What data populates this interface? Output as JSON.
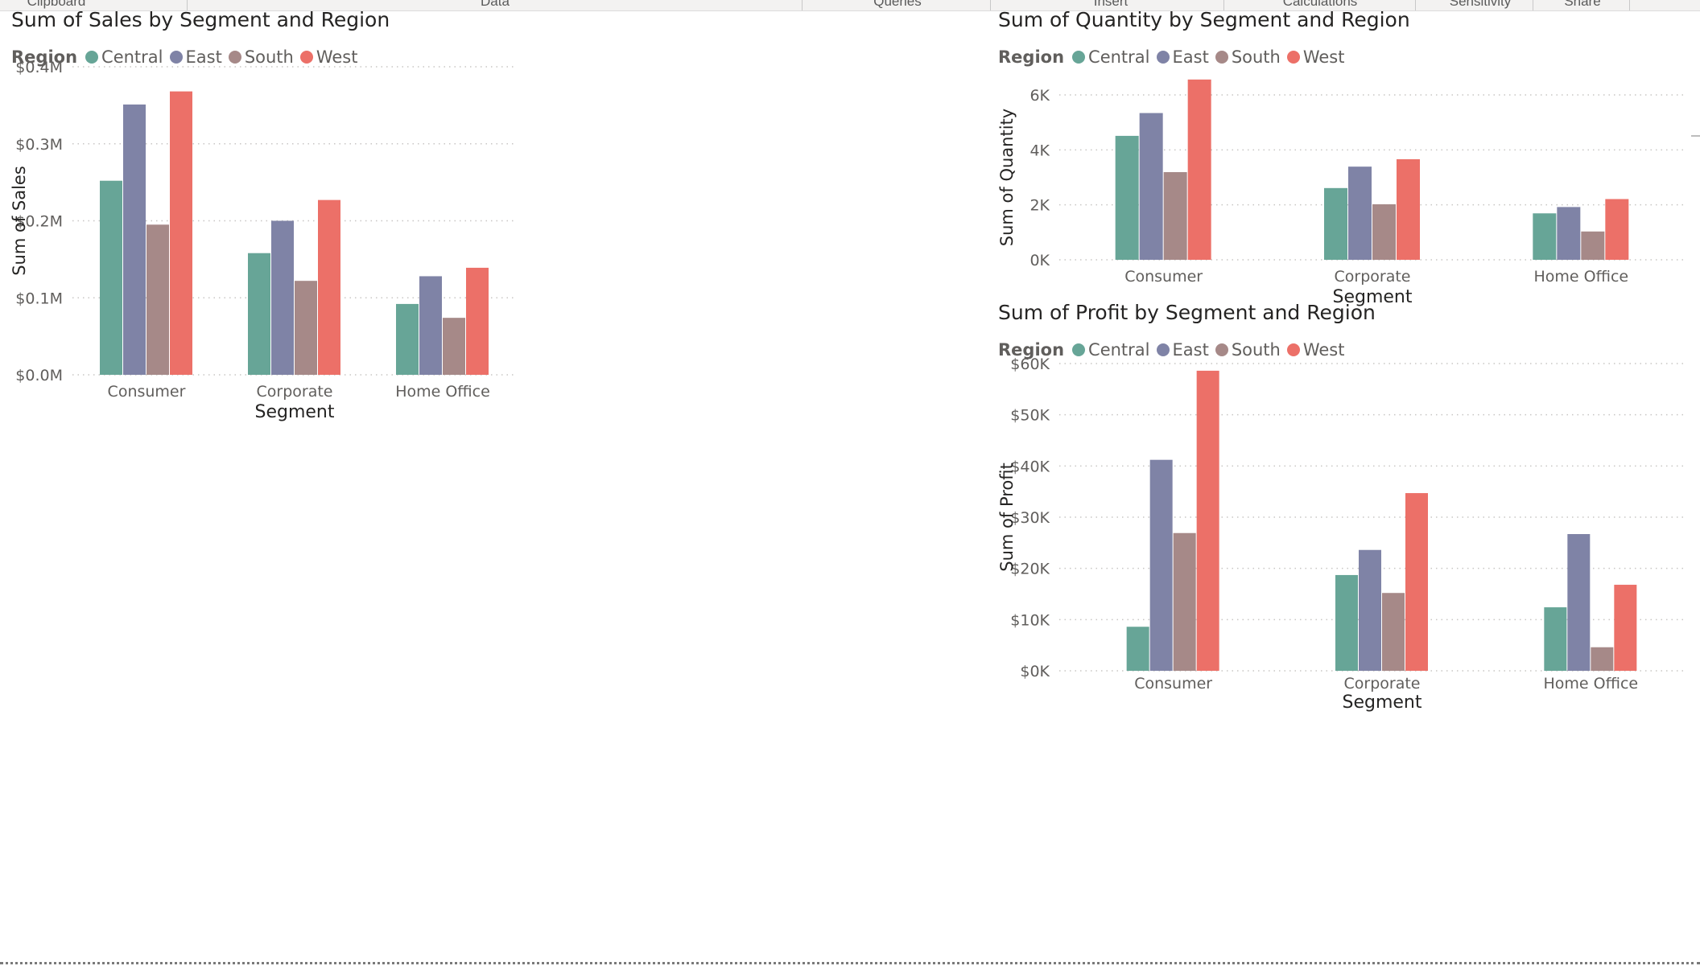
{
  "ribbon": {
    "groups": [
      "Clipboard",
      "Data",
      "Queries",
      "Insert",
      "Calculations",
      "Sensitivity",
      "Share"
    ]
  },
  "colors": {
    "Central": "#67a597",
    "East": "#7f83a6",
    "South": "#a68988",
    "West": "#ec7068",
    "gridline": "#c8c6c4",
    "axis_text": "#605e5c",
    "title_text": "#252423"
  },
  "legend": {
    "title": "Region",
    "items": [
      {
        "label": "Central",
        "color": "#67a597"
      },
      {
        "label": "East",
        "color": "#7f83a6"
      },
      {
        "label": "South",
        "color": "#a68988"
      },
      {
        "label": "West",
        "color": "#ec7068"
      }
    ]
  },
  "chart_data": [
    {
      "type": "bar",
      "title": "Sum of Sales by Segment and Region",
      "xlabel": "Segment",
      "ylabel": "Sum of Sales",
      "categories": [
        "Consumer",
        "Corporate",
        "Home Office"
      ],
      "ylim": [
        0,
        400000
      ],
      "yticks": [
        0,
        100000,
        200000,
        300000,
        400000
      ],
      "ytick_labels": [
        "$0.0M",
        "$0.1M",
        "$0.2M",
        "$0.3M",
        "$0.4M"
      ],
      "grid": true,
      "legend_placement": "top-left",
      "series": [
        {
          "name": "Central",
          "values": [
            252000,
            158000,
            92000
          ]
        },
        {
          "name": "East",
          "values": [
            351000,
            200000,
            128000
          ]
        },
        {
          "name": "South",
          "values": [
            195000,
            122000,
            74000
          ]
        },
        {
          "name": "West",
          "values": [
            368000,
            227000,
            139000
          ]
        }
      ]
    },
    {
      "type": "bar",
      "title": "Sum of Quantity by Segment and Region",
      "xlabel": "Segment",
      "ylabel": "Sum of Quantity",
      "categories": [
        "Consumer",
        "Corporate",
        "Home Office"
      ],
      "ylim": [
        0,
        6700
      ],
      "yticks": [
        0,
        2000,
        4000,
        6000
      ],
      "ytick_labels": [
        "0K",
        "2K",
        "4K",
        "6K"
      ],
      "grid": true,
      "legend_placement": "top-left",
      "series": [
        {
          "name": "Central",
          "values": [
            4510,
            2610,
            1690
          ]
        },
        {
          "name": "East",
          "values": [
            5340,
            3390,
            1920
          ]
        },
        {
          "name": "South",
          "values": [
            3190,
            2020,
            1030
          ]
        },
        {
          "name": "West",
          "values": [
            6560,
            3660,
            2210
          ]
        }
      ]
    },
    {
      "type": "bar",
      "title": "Sum of Profit by Segment and Region",
      "xlabel": "Segment",
      "ylabel": "Sum of Profit",
      "categories": [
        "Consumer",
        "Corporate",
        "Home Office"
      ],
      "ylim": [
        0,
        60000
      ],
      "yticks": [
        0,
        10000,
        20000,
        30000,
        40000,
        50000,
        60000
      ],
      "ytick_labels": [
        "$0K",
        "$10K",
        "$20K",
        "$30K",
        "$40K",
        "$50K",
        "$60K"
      ],
      "grid": true,
      "legend_placement": "top-left",
      "series": [
        {
          "name": "Central",
          "values": [
            8600,
            18700,
            12400
          ]
        },
        {
          "name": "East",
          "values": [
            41200,
            23600,
            26700
          ]
        },
        {
          "name": "South",
          "values": [
            26900,
            15200,
            4600
          ]
        },
        {
          "name": "West",
          "values": [
            58600,
            34700,
            16800
          ]
        }
      ]
    }
  ]
}
